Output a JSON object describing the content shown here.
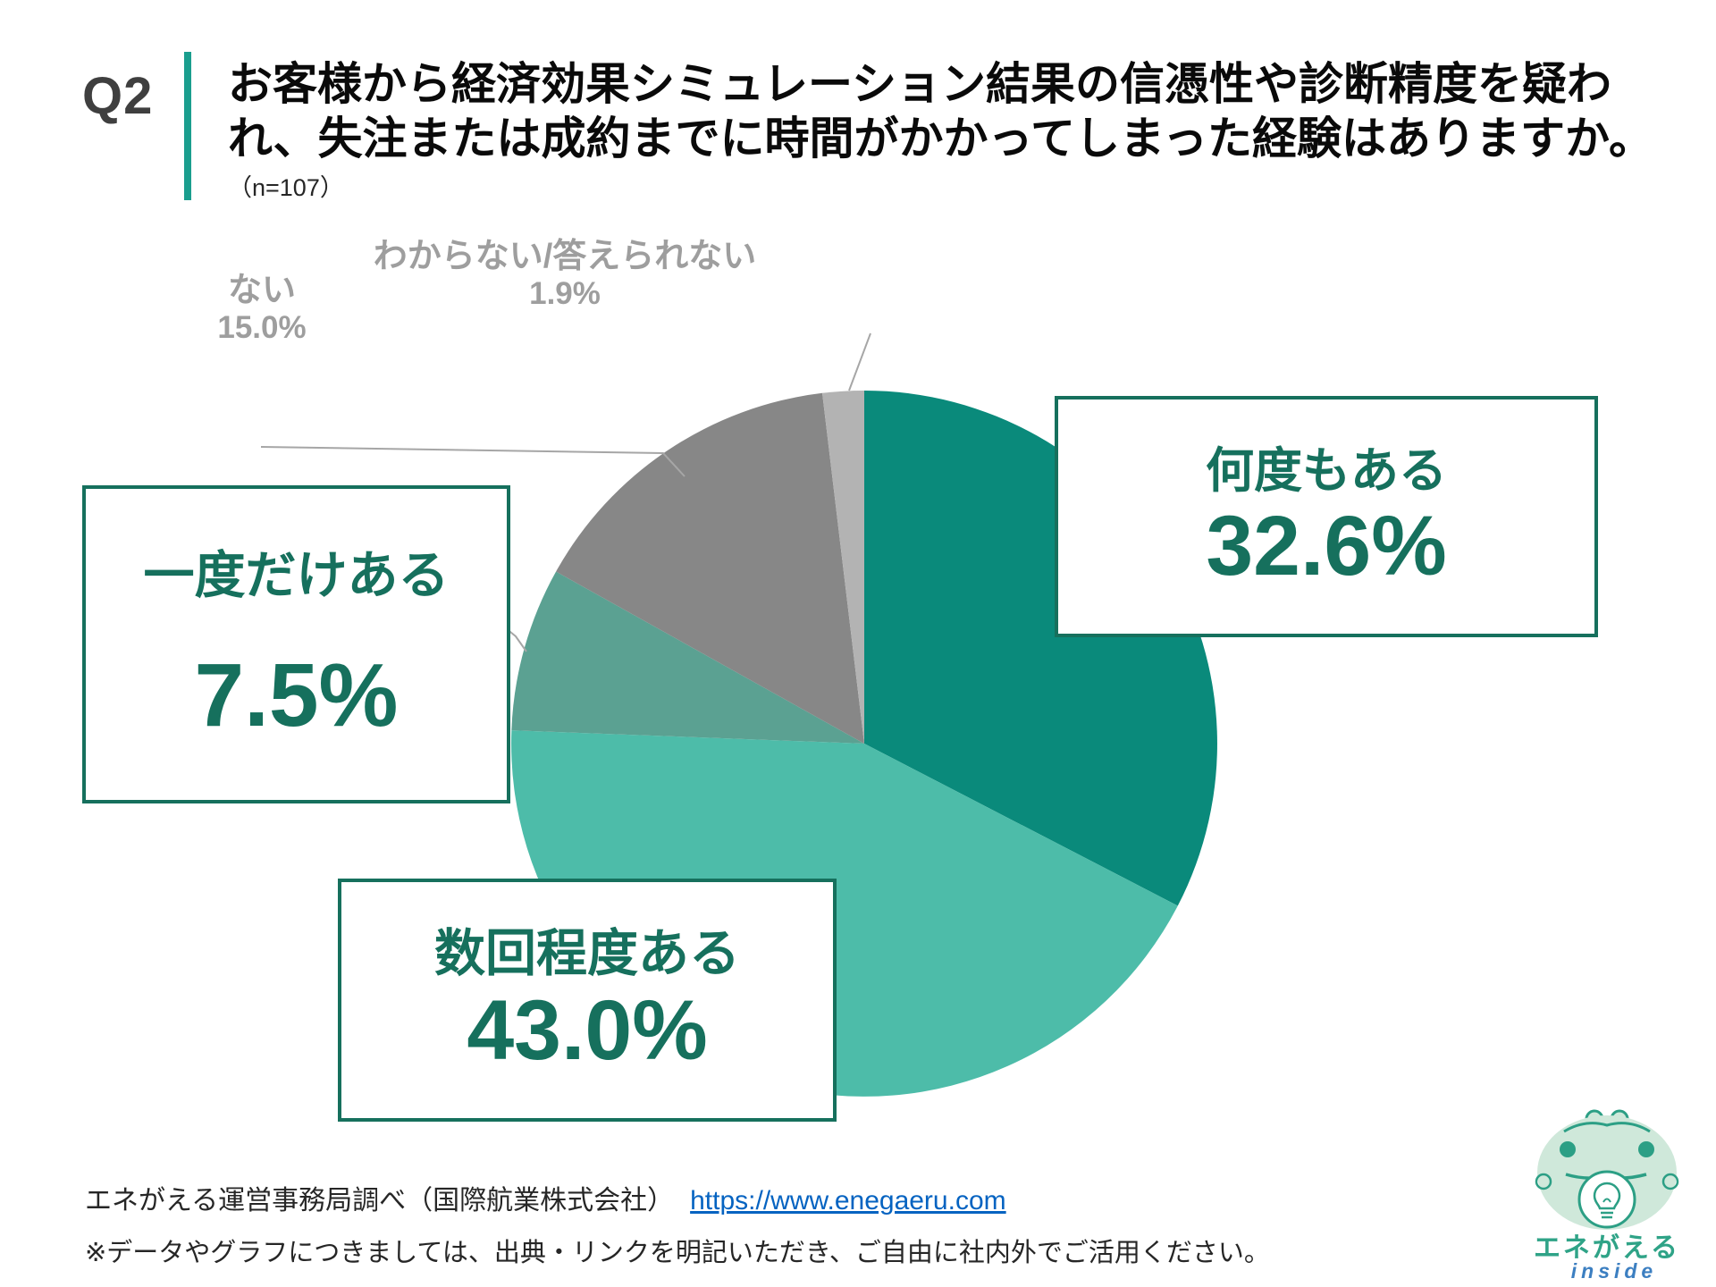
{
  "header": {
    "q_label": "Q2",
    "title_lines": [
      "お客様から経済効果シミュレーション結果の信憑性や診断精度を疑わ",
      "れ、失注または成約までに時間がかかってしまった経験はありますか。"
    ],
    "sample_size": "（n=107）"
  },
  "chart_data": {
    "type": "pie",
    "title": "お客様から経済効果シミュレーション結果の信憑性や診断精度を疑われ、失注または成約までに時間がかかってしまった経験はありますか。",
    "sample_size": "n=107",
    "categories": [
      "何度もある",
      "数回程度ある",
      "一度だけある",
      "ない",
      "わからない/答えられない"
    ],
    "values": [
      32.6,
      43.0,
      7.5,
      15.0,
      1.9
    ],
    "unit": "%",
    "colors": [
      "#0a8a7b",
      "#4dbca9",
      "#5ba192",
      "#878787",
      "#b3b3b3"
    ],
    "start_angle_deg": 0,
    "direction": "clockwise",
    "legend_position": "none",
    "label_style": "direct callout labels"
  },
  "callouts": {
    "frequent": {
      "label": "何度もある",
      "value": "32.6%"
    },
    "several": {
      "label": "数回程度ある",
      "value": "43.0%"
    },
    "once": {
      "label": "一度だけある",
      "value": "7.5%"
    },
    "none": {
      "label": "ない",
      "value": "15.0%"
    },
    "unknown": {
      "label": "わからない/答えられない",
      "value": "1.9%"
    }
  },
  "footer": {
    "source_text": "エネがえる運営事務局調べ（国際航業株式会社）",
    "source_link": "https://www.enegaeru.com",
    "note": "※データやグラフにつきましては、出典・リンクを明記いただき、ご自由に社内外でご活用ください。"
  },
  "logo": {
    "brand": "エネがえる",
    "sub": "inside"
  },
  "colors": {
    "accent_teal_bar": "#1a9e8e",
    "callout_green": "#16705d",
    "gray_label": "#9e9e9e",
    "link_blue": "#0563c1"
  }
}
